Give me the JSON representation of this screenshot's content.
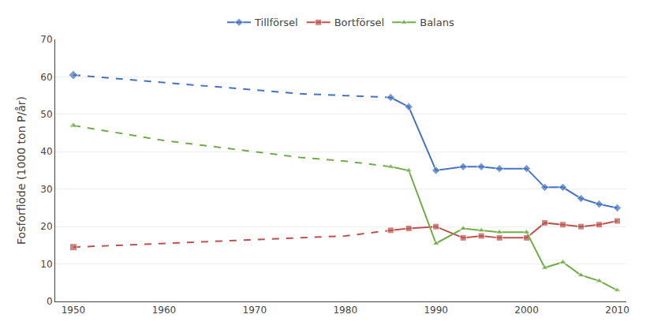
{
  "chart_data": {
    "type": "line",
    "x": [
      1950,
      1955,
      1960,
      1965,
      1970,
      1975,
      1980,
      1985,
      1987,
      1990,
      1993,
      1995,
      1997,
      2000,
      2002,
      2004,
      2006,
      2008,
      2010
    ],
    "series": [
      {
        "name": "Tillförsel",
        "color": "#4472C4",
        "marker": "diamond",
        "line_style": "dash",
        "values": [
          60.5,
          59.5,
          58.5,
          57.5,
          56.5,
          55.5,
          55.0,
          54.5,
          null,
          null,
          null,
          null,
          null,
          null,
          null,
          null,
          null,
          null,
          null
        ]
      },
      {
        "name": "Bortförsel",
        "color": "#C0504D",
        "marker": "square",
        "line_style": "dash",
        "values": [
          14.5,
          15.0,
          15.5,
          16.0,
          16.5,
          17.0,
          17.5,
          19.0,
          null,
          null,
          null,
          null,
          null,
          null,
          null,
          null,
          null,
          null,
          null
        ]
      },
      {
        "name": "Balans",
        "color": "#70AD47",
        "marker": "triangle-up",
        "line_style": "dash",
        "values": [
          47.0,
          45.0,
          43.0,
          41.5,
          40.0,
          38.5,
          37.5,
          36.0,
          null,
          null,
          null,
          null,
          null,
          null,
          null,
          null,
          null,
          null,
          null
        ]
      },
      {
        "name": "Tillförsel",
        "color": "#4472C4",
        "marker": "diamond",
        "line_style": "solid",
        "values": [
          null,
          null,
          null,
          null,
          null,
          null,
          null,
          54.5,
          52.0,
          35.0,
          36.0,
          36.0,
          35.5,
          35.5,
          30.5,
          30.5,
          27.5,
          26.0,
          25.0
        ]
      },
      {
        "name": "Bortförsel",
        "color": "#C0504D",
        "marker": "square",
        "line_style": "solid",
        "values": [
          null,
          null,
          null,
          null,
          null,
          null,
          null,
          19.0,
          19.5,
          20.0,
          17.0,
          17.5,
          17.0,
          17.0,
          21.0,
          20.5,
          20.0,
          20.5,
          21.5
        ]
      },
      {
        "name": "Balans",
        "color": "#70AD47",
        "marker": "triangle-up",
        "line_style": "solid",
        "values": [
          null,
          null,
          null,
          null,
          null,
          null,
          null,
          36.0,
          35.0,
          15.5,
          19.5,
          19.0,
          18.5,
          18.5,
          9.0,
          10.5,
          7.0,
          5.5,
          3.0
        ]
      }
    ],
    "ylabel": "Fosforflöde (1000 ton P/år)",
    "xlim": [
      1948,
      2011
    ],
    "xticks": [
      1950,
      1960,
      1970,
      1980,
      1990,
      2000,
      2010
    ],
    "ylim": [
      0,
      70
    ],
    "yticks": [
      0,
      10,
      20,
      30,
      40,
      50,
      60,
      70
    ],
    "grid": true,
    "legend": "top"
  }
}
